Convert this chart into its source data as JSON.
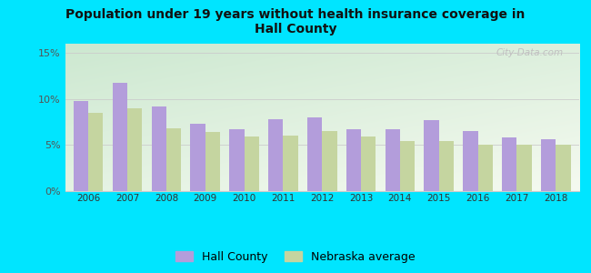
{
  "title": "Population under 19 years without health insurance coverage in\nHall County",
  "years": [
    2006,
    2007,
    2008,
    2009,
    2010,
    2011,
    2012,
    2013,
    2014,
    2015,
    2016,
    2017,
    2018
  ],
  "hall_county": [
    9.8,
    11.8,
    9.2,
    7.3,
    6.7,
    7.8,
    8.0,
    6.7,
    6.7,
    7.7,
    6.5,
    5.8,
    5.6
  ],
  "nebraska_avg": [
    8.5,
    9.0,
    6.8,
    6.4,
    5.9,
    6.0,
    6.5,
    5.9,
    5.4,
    5.4,
    5.0,
    5.0,
    5.0
  ],
  "hall_color": "#b39ddb",
  "nebraska_color": "#c5d5a0",
  "bg_outer": "#00e5ff",
  "bg_chart_topleft": "#cce8d0",
  "bg_chart_bottomright": "#f5faf0",
  "ylim": [
    0,
    16
  ],
  "yticks": [
    0,
    5,
    10,
    15
  ],
  "ytick_labels": [
    "0%",
    "5%",
    "10%",
    "15%"
  ],
  "bar_width": 0.38,
  "watermark": "City-Data.com",
  "legend_hall": "Hall County",
  "legend_nebraska": "Nebraska average"
}
